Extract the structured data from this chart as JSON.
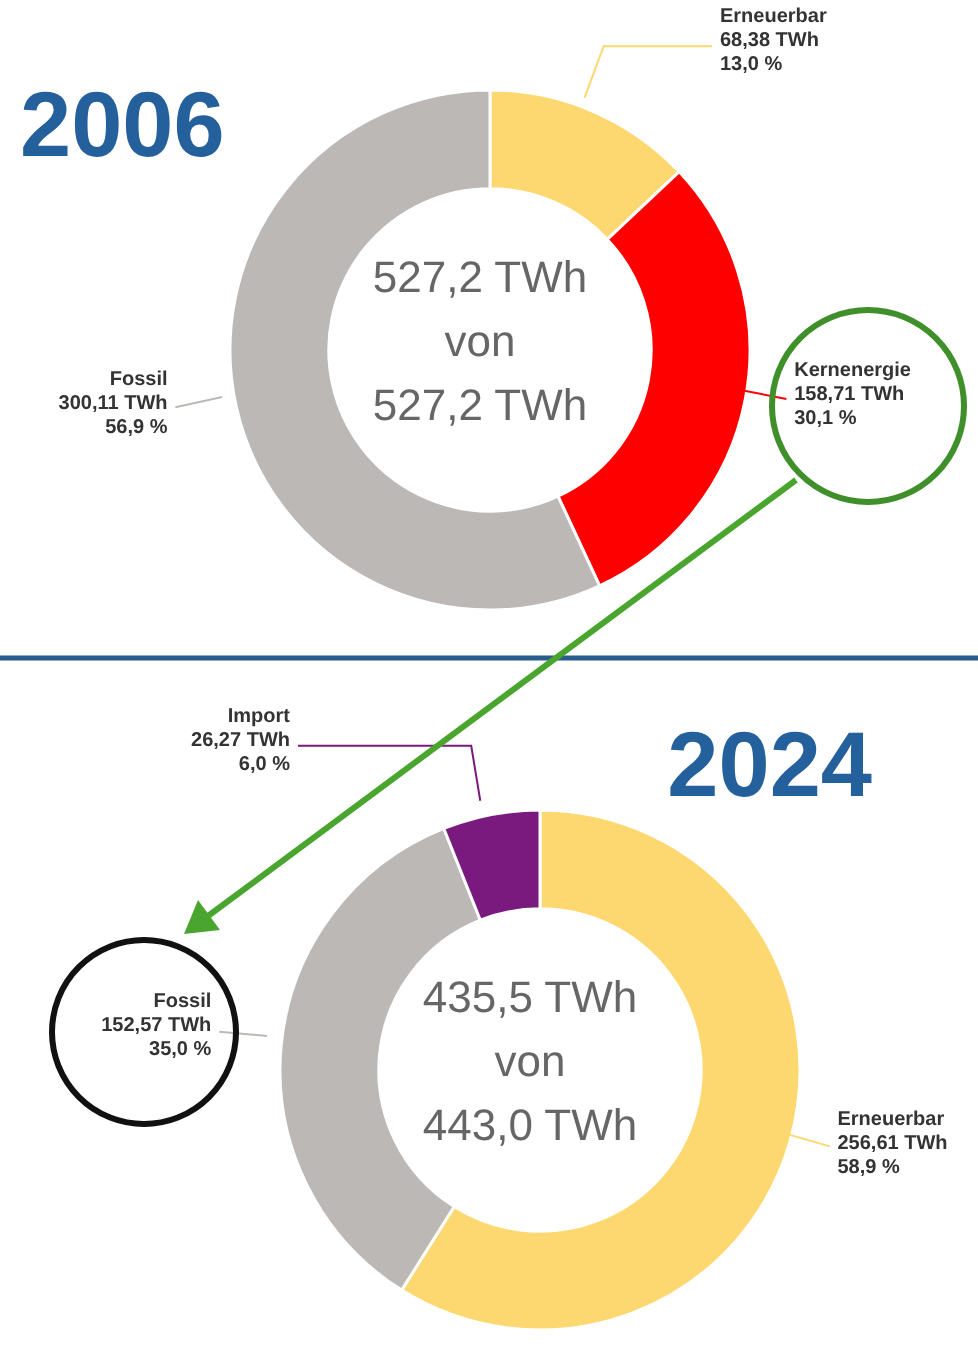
{
  "chart_data": [
    {
      "type": "donut",
      "title": "2006",
      "categories": [
        "Erneuerbar",
        "Kernenergie",
        "Fossil"
      ],
      "values": [
        68.38,
        158.71,
        300.11
      ],
      "colors": [
        "#fdd870",
        "#ff0000",
        "#bcb8b5"
      ],
      "value_labels": [
        "68,38 TWh\n13,0 %",
        "158,71 TWh\n30,1 %",
        "300,11 TWh\n56,9 %"
      ],
      "annotations": [
        "527,2 TWh",
        "von",
        "527,2 TWh"
      ]
    },
    {
      "type": "donut",
      "title": "2024",
      "categories": [
        "Erneuerbar",
        "Fossil",
        "Import"
      ],
      "values": [
        256.61,
        152.57,
        26.27
      ],
      "colors": [
        "#fdd870",
        "#bcb8b5",
        "#7b1a7e"
      ],
      "value_labels": [
        "256,61 TWh\n58,9 %",
        "152,57 TWh\n35,0 %",
        "26,27 TWh\n6,0 %"
      ],
      "annotations": [
        "435,5 TWh",
        "von",
        "443,0 TWh"
      ]
    }
  ]
}
